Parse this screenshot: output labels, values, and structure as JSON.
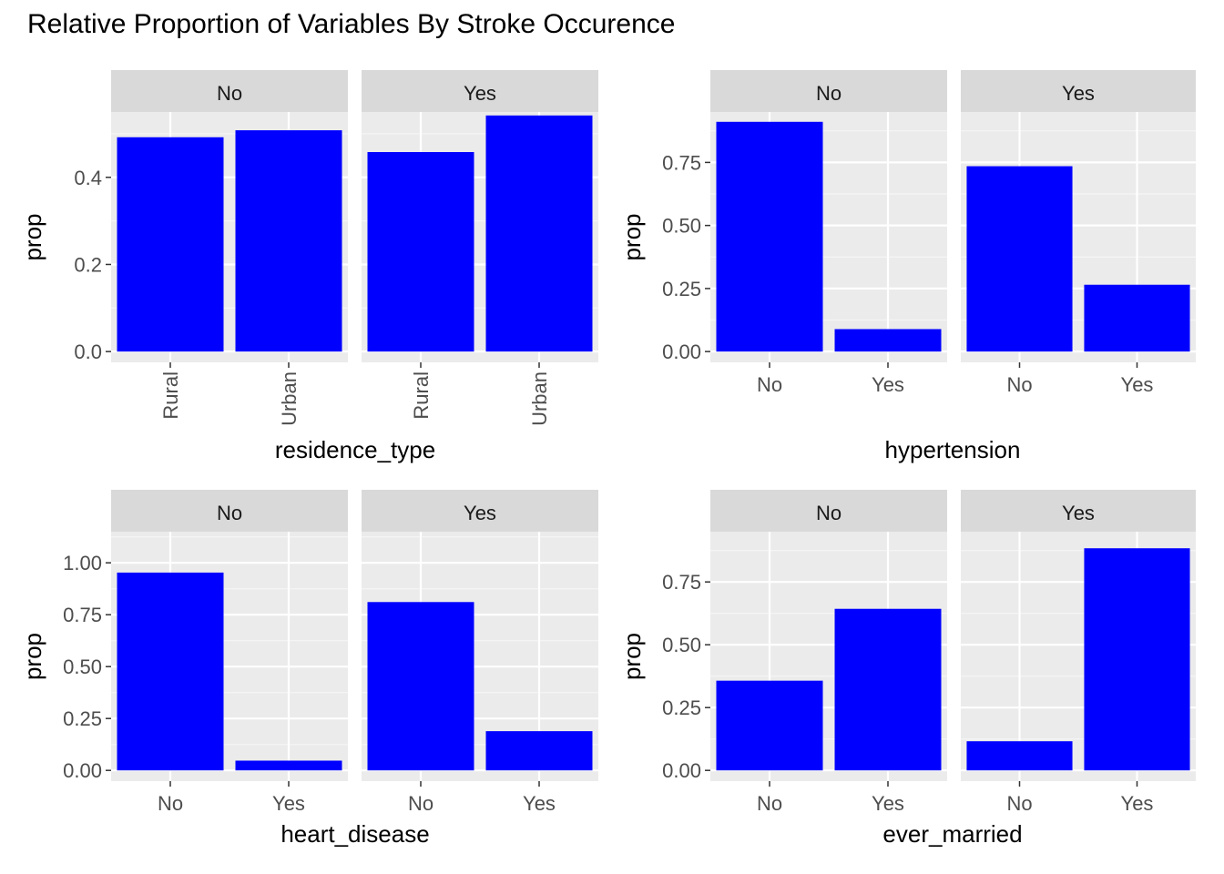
{
  "title": "Relative Proportion of Variables By Stroke Occurence",
  "colors": {
    "bar": "#0000FF",
    "panel_bg": "#EBEBEB",
    "grid_major": "#FFFFFF",
    "strip_bg": "#D9D9D9",
    "tick_text": "#4D4D4D"
  },
  "chart_data": [
    {
      "type": "bar",
      "facet_labels": [
        "No",
        "Yes"
      ],
      "categories": [
        "Rural",
        "Urban"
      ],
      "xlabel": "residence_type",
      "ylabel": "prop",
      "ylim": [
        0,
        0.55
      ],
      "yticks": [
        0.0,
        0.2,
        0.4
      ],
      "ytick_labels": [
        "0.0",
        "0.2",
        "0.4"
      ],
      "x_text_rotated": true,
      "grid": true,
      "series": [
        {
          "values": [
            0.492,
            0.508
          ]
        },
        {
          "values": [
            0.458,
            0.542
          ]
        }
      ]
    },
    {
      "type": "bar",
      "facet_labels": [
        "No",
        "Yes"
      ],
      "categories": [
        "No",
        "Yes"
      ],
      "xlabel": "hypertension",
      "ylabel": "prop",
      "ylim": [
        0,
        0.95
      ],
      "yticks": [
        0.0,
        0.25,
        0.5,
        0.75
      ],
      "ytick_labels": [
        "0.00",
        "0.25",
        "0.50",
        "0.75"
      ],
      "x_text_rotated": false,
      "grid": true,
      "series": [
        {
          "values": [
            0.911,
            0.089
          ]
        },
        {
          "values": [
            0.735,
            0.265
          ]
        }
      ]
    },
    {
      "type": "bar",
      "facet_labels": [
        "No",
        "Yes"
      ],
      "categories": [
        "No",
        "Yes"
      ],
      "xlabel": "heart_disease",
      "ylabel": "prop",
      "ylim": [
        0,
        1.15
      ],
      "yticks": [
        0.0,
        0.25,
        0.5,
        0.75,
        1.0
      ],
      "ytick_labels": [
        "0.00",
        "0.25",
        "0.50",
        "0.75",
        "1.00"
      ],
      "x_text_rotated": false,
      "grid": true,
      "series": [
        {
          "values": [
            0.953,
            0.047
          ]
        },
        {
          "values": [
            0.811,
            0.189
          ]
        }
      ]
    },
    {
      "type": "bar",
      "facet_labels": [
        "No",
        "Yes"
      ],
      "categories": [
        "No",
        "Yes"
      ],
      "xlabel": "ever_married",
      "ylabel": "prop",
      "ylim": [
        0,
        0.95
      ],
      "yticks": [
        0.0,
        0.25,
        0.5,
        0.75
      ],
      "ytick_labels": [
        "0.00",
        "0.25",
        "0.50",
        "0.75"
      ],
      "x_text_rotated": false,
      "grid": true,
      "series": [
        {
          "values": [
            0.357,
            0.643
          ]
        },
        {
          "values": [
            0.116,
            0.884
          ]
        }
      ]
    }
  ]
}
